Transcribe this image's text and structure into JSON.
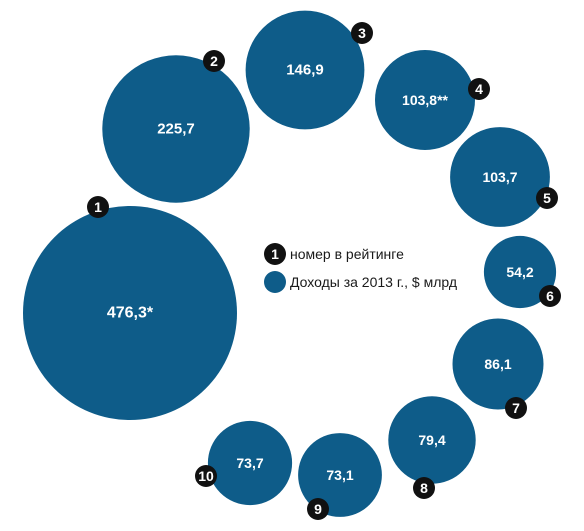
{
  "chart_data": {
    "type": "bubble",
    "unit": "$ млрд",
    "points": [
      {
        "rank": "1",
        "label": "476,3*",
        "value": 476.3
      },
      {
        "rank": "2",
        "label": "225,7",
        "value": 225.7
      },
      {
        "rank": "3",
        "label": "146,9",
        "value": 146.9
      },
      {
        "rank": "4",
        "label": "103,8**",
        "value": 103.8
      },
      {
        "rank": "5",
        "label": "103,7",
        "value": 103.7
      },
      {
        "rank": "6",
        "label": "54,2",
        "value": 54.2
      },
      {
        "rank": "7",
        "label": "86,1",
        "value": 86.1
      },
      {
        "rank": "8",
        "label": "79,4",
        "value": 79.4
      },
      {
        "rank": "9",
        "label": "73,1",
        "value": 73.1
      },
      {
        "rank": "10",
        "label": "73,7",
        "value": 73.7
      }
    ]
  },
  "legend": {
    "rank_marker": "1",
    "rank_label": "номер в рейтинге",
    "income_label": "Доходы за 2013 г., $ млрд"
  },
  "colors": {
    "bubble": "#0e5c89",
    "rank_badge": "#111111",
    "text_on_bubble": "#ffffff"
  }
}
